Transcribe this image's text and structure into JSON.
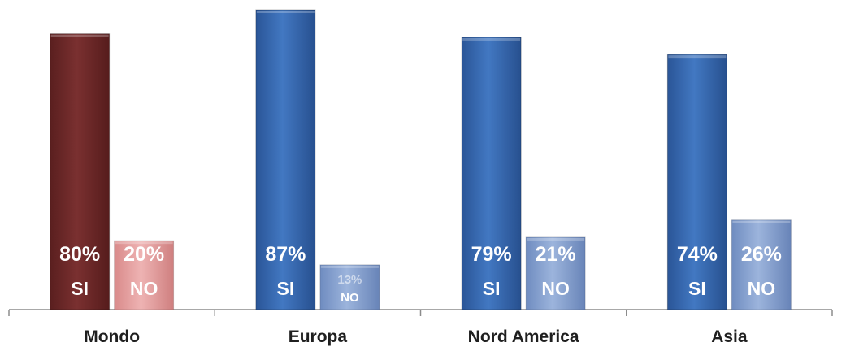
{
  "chart_data": {
    "type": "bar",
    "categories": [
      "Mondo",
      "Europa",
      "Nord America",
      "Asia"
    ],
    "series": [
      {
        "name": "SI",
        "values": [
          80,
          87,
          79,
          74
        ]
      },
      {
        "name": "NO",
        "values": [
          20,
          13,
          21,
          26
        ]
      }
    ],
    "value_labels": {
      "SI": [
        "80%",
        "87%",
        "79%",
        "74%"
      ],
      "NO": [
        "20%",
        "13%",
        "21%",
        "26%"
      ]
    },
    "series_labels": [
      "SI",
      "NO"
    ],
    "ylim": [
      0,
      87
    ],
    "grid": false,
    "legend": "none",
    "colors": {
      "SI_first": "#6e2a2a",
      "NO_first": "#e7a3a3",
      "SI_other": "#3a6db4",
      "NO_other": "#8fa8d4",
      "axis": "#8c8c8c",
      "label_text": "#ffffff"
    }
  }
}
